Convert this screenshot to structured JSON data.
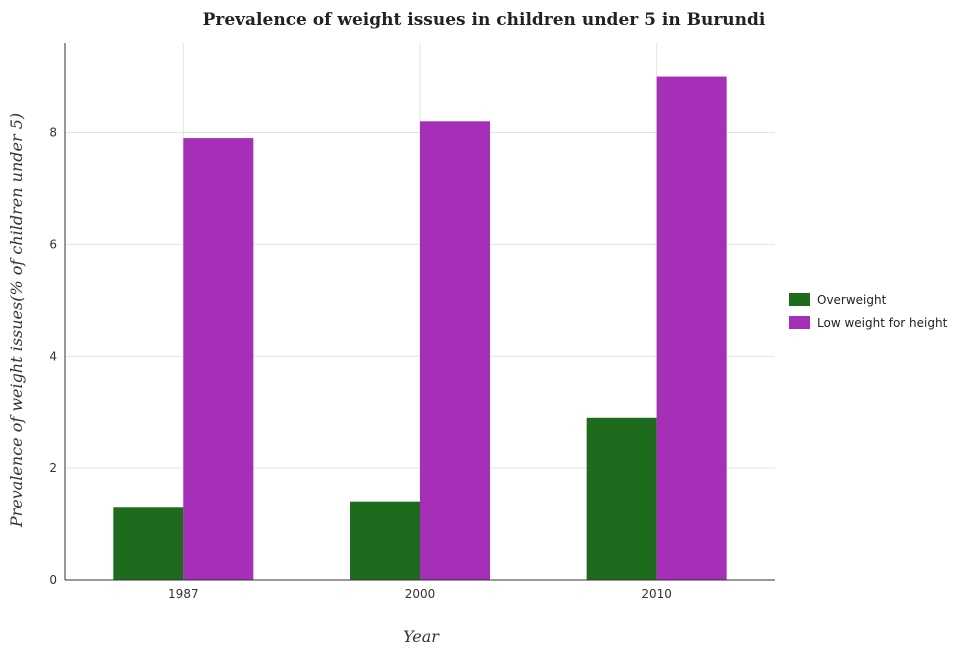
{
  "chart_data": {
    "type": "bar",
    "title": "Prevalence of weight issues in children under 5 in Burundi",
    "xlabel": "Year",
    "ylabel": "Prevalence of weight issues(% of children under 5)",
    "categories": [
      "1987",
      "2000",
      "2010"
    ],
    "series": [
      {
        "name": "Overweight",
        "values": [
          1.3,
          1.4,
          2.9
        ],
        "color": "#1e6b1e"
      },
      {
        "name": "Low weight for height",
        "values": [
          7.9,
          8.2,
          9.0
        ],
        "color": "#a62fb8"
      }
    ],
    "ylim": [
      0,
      9.6
    ],
    "yticks": [
      "0",
      "2",
      "4",
      "6",
      "8"
    ],
    "grid": true,
    "legend_position": "right"
  }
}
